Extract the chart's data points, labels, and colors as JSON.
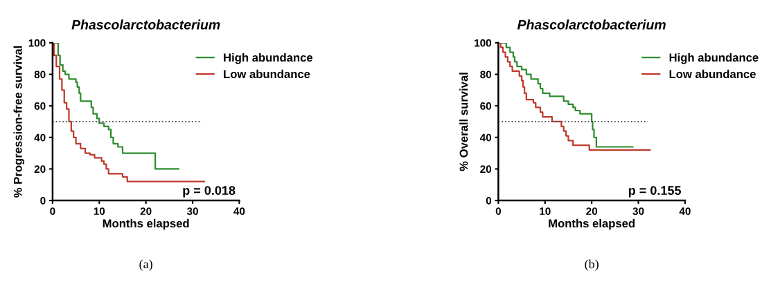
{
  "chart_data": [
    {
      "type": "step",
      "title": "Phascolarctobacterium",
      "xlabel": "Months elapsed",
      "ylabel": "% Progression-free survival",
      "xlim": [
        0,
        40
      ],
      "xticks": [
        0,
        10,
        20,
        30,
        40
      ],
      "ylim": [
        0,
        100
      ],
      "yticks": [
        0,
        20,
        40,
        60,
        80,
        100
      ],
      "grid": false,
      "legend": "top right",
      "marker": "none",
      "line_style": "solid",
      "ref_lines": [
        {
          "axis": "y",
          "value": 50,
          "line_style": "dotted",
          "color": "#555555"
        }
      ],
      "annotations": [
        "p = 0.018",
        "(a)"
      ],
      "series": [
        {
          "name": "High abundance",
          "color": "#2e8b2e",
          "x": [
            0,
            1,
            1.2,
            1.6,
            2.2,
            2.7,
            3.5,
            5,
            5.3,
            5.7,
            6,
            8.3,
            8.7,
            9.5,
            10,
            11,
            12,
            12.5,
            13,
            14,
            15,
            22,
            27
          ],
          "values": [
            100,
            100,
            92,
            86,
            82,
            80,
            77,
            75,
            72,
            68,
            63,
            59,
            55,
            52,
            49,
            47,
            45,
            40,
            36,
            34,
            30,
            20,
            20
          ]
        },
        {
          "name": "Low abundance",
          "color": "#c0392b",
          "x": [
            0,
            0.3,
            0.8,
            1.5,
            2,
            2.5,
            3,
            3.5,
            4,
            4.5,
            5,
            6,
            7,
            8,
            9,
            10.5,
            11,
            11.5,
            12,
            15,
            16,
            32.5
          ],
          "values": [
            100,
            92,
            85,
            77,
            70,
            62,
            58,
            50,
            44,
            40,
            36,
            33,
            30,
            29,
            27,
            25,
            23,
            20,
            17,
            15,
            12,
            12
          ]
        }
      ]
    },
    {
      "type": "step",
      "title": "Phascolarctobacterium",
      "xlabel": "Months elapsed",
      "ylabel": "% Overall survival",
      "xlim": [
        0,
        40
      ],
      "xticks": [
        0,
        10,
        20,
        30,
        40
      ],
      "ylim": [
        0,
        100
      ],
      "yticks": [
        0,
        20,
        40,
        60,
        80,
        100
      ],
      "grid": false,
      "legend": "top right",
      "marker": "none",
      "line_style": "solid",
      "ref_lines": [
        {
          "axis": "y",
          "value": 50,
          "line_style": "dotted",
          "color": "#555555"
        }
      ],
      "annotations": [
        "p = 0.155",
        "(b)"
      ],
      "series": [
        {
          "name": "High abundance",
          "color": "#2e8b2e",
          "x": [
            0,
            1.5,
            1.7,
            2.5,
            3.2,
            3.5,
            4,
            5,
            6,
            7,
            8.5,
            9,
            9.5,
            11,
            14,
            15,
            16,
            16.5,
            17.5,
            20,
            20.2,
            20.5,
            21,
            28.8
          ],
          "values": [
            100,
            100,
            97,
            94,
            91,
            88,
            85,
            83,
            80,
            77,
            74,
            71,
            68,
            66,
            63,
            61,
            59,
            57,
            55,
            50,
            45,
            40,
            34,
            34
          ]
        },
        {
          "name": "Low abundance",
          "color": "#c0392b",
          "x": [
            0,
            0.5,
            1,
            1.5,
            2,
            2.5,
            3,
            4.5,
            5,
            5.3,
            5.6,
            6,
            7.5,
            8,
            9,
            9.5,
            11.5,
            13.5,
            14,
            14.5,
            15,
            16,
            19.5,
            32.5
          ],
          "values": [
            100,
            97,
            94,
            91,
            88,
            85,
            82,
            79,
            76,
            72,
            68,
            64,
            62,
            59,
            56,
            53,
            50,
            47,
            44,
            41,
            38,
            35,
            32,
            32
          ]
        }
      ]
    }
  ]
}
